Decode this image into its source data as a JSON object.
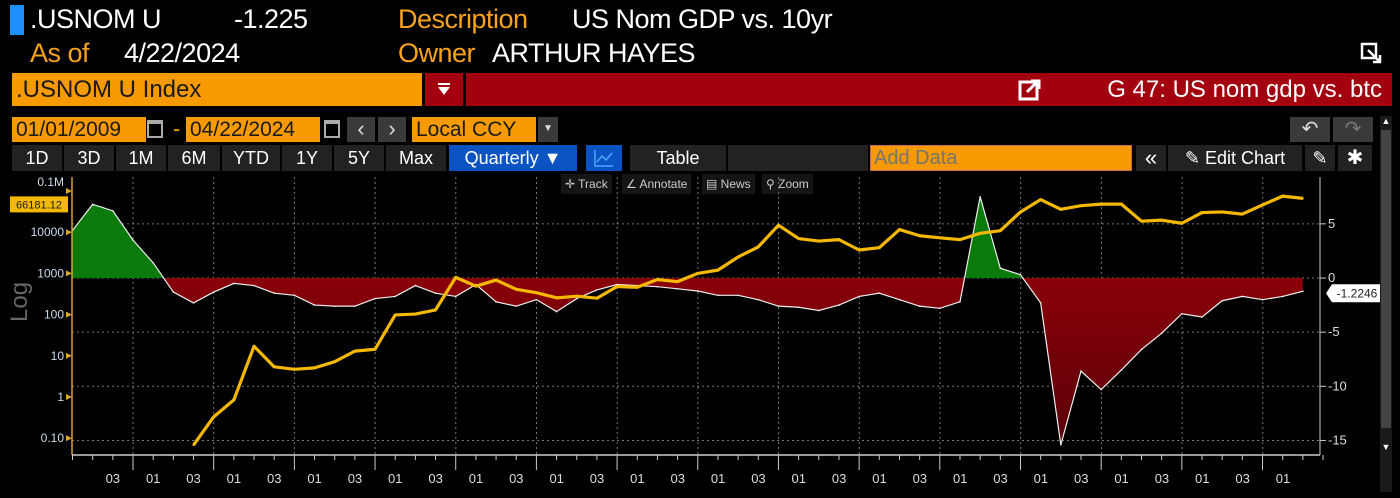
{
  "header": {
    "ticker": ".USNOM U",
    "last_value": "-1.225",
    "description_label": "Description",
    "description_value": "US Nom GDP vs. 10yr",
    "asof_label": "As of",
    "asof_value": "4/22/2024",
    "owner_label": "Owner",
    "owner_value": "ARTHUR HAYES"
  },
  "security_bar": {
    "security_input": ".USNOM U Index",
    "chart_title": "G 47: US nom gdp vs. btc"
  },
  "date_bar": {
    "start_date": "01/01/2009",
    "separator": "-",
    "end_date": "04/22/2024",
    "prev": "‹",
    "next": "›",
    "currency": "Local CCY",
    "undo": "↶",
    "redo": "↷"
  },
  "toolbar": {
    "periods": [
      "1D",
      "3D",
      "1M",
      "6M",
      "YTD",
      "1Y",
      "5Y",
      "Max"
    ],
    "frequency": "Quarterly ▼",
    "table_label": "Table",
    "add_data_placeholder": "Add Data",
    "collapse": "«",
    "edit_chart": "Edit Chart",
    "edit_icon": "✎",
    "settings_icon": "✱"
  },
  "chart_tools": [
    "Track",
    "Annotate",
    "News",
    "Zoom"
  ],
  "colors": {
    "accent_orange": "#f79a00",
    "title_red": "#a3000f",
    "btc_line": "#f5b800",
    "positive_fill": "#0a7a0a",
    "negative_fill": "#a0000a",
    "active_blue": "#0a53c2"
  },
  "chart_data": {
    "type": "area",
    "left_axis_label": "Log",
    "left_axis_scale": "log",
    "left_ticks": [
      "0.10",
      "1",
      "10",
      "100",
      "1000",
      "10000",
      "0.1M"
    ],
    "right_ticks": [
      "5",
      "0",
      "-5",
      "-10",
      "-15"
    ],
    "right_ylim": [
      -17,
      8
    ],
    "x_tick_labels_pattern": [
      "01",
      "03"
    ],
    "x_range": [
      "2009Q1",
      "2024Q2"
    ],
    "grid": true,
    "x": [
      "2009Q1",
      "2009Q2",
      "2009Q3",
      "2009Q4",
      "2010Q1",
      "2010Q2",
      "2010Q3",
      "2010Q4",
      "2011Q1",
      "2011Q2",
      "2011Q3",
      "2011Q4",
      "2012Q1",
      "2012Q2",
      "2012Q3",
      "2012Q4",
      "2013Q1",
      "2013Q2",
      "2013Q3",
      "2013Q4",
      "2014Q1",
      "2014Q2",
      "2014Q3",
      "2014Q4",
      "2015Q1",
      "2015Q2",
      "2015Q3",
      "2015Q4",
      "2016Q1",
      "2016Q2",
      "2016Q3",
      "2016Q4",
      "2017Q1",
      "2017Q2",
      "2017Q3",
      "2017Q4",
      "2018Q1",
      "2018Q2",
      "2018Q3",
      "2018Q4",
      "2019Q1",
      "2019Q2",
      "2019Q3",
      "2019Q4",
      "2020Q1",
      "2020Q2",
      "2020Q3",
      "2020Q4",
      "2021Q1",
      "2021Q2",
      "2021Q3",
      "2021Q4",
      "2022Q1",
      "2022Q2",
      "2022Q3",
      "2022Q4",
      "2023Q1",
      "2023Q2",
      "2023Q3",
      "2023Q4",
      "2024Q1",
      "2024Q2"
    ],
    "series": [
      {
        "axis": "right",
        "style": "area-fill-green-above-red-below",
        "last_label": "-1.2246",
        "values": [
          4.4,
          6.8,
          6.2,
          3.5,
          1.4,
          -1.3,
          -2.3,
          -1.3,
          -0.5,
          -0.7,
          -1.4,
          -1.6,
          -2.5,
          -2.6,
          -2.6,
          -1.9,
          -1.7,
          -0.7,
          -1.4,
          -1.7,
          -0.6,
          -2.2,
          -2.6,
          -2.0,
          -3.1,
          -1.9,
          -1.1,
          -0.6,
          -0.7,
          -0.8,
          -1.0,
          -1.2,
          -1.6,
          -1.6,
          -2.0,
          -2.6,
          -2.7,
          -3.0,
          -2.5,
          -1.7,
          -1.4,
          -2.0,
          -2.6,
          -2.8,
          -2.2,
          7.5,
          0.9,
          0.3,
          -2.3,
          -15.4,
          -8.6,
          -10.3,
          -8.5,
          -6.6,
          -5.1,
          -3.3,
          -3.6,
          -2.1,
          -1.7,
          -2.0,
          -1.7,
          -1.2246
        ]
      },
      {
        "axis": "left",
        "style": "line",
        "last_label": "66181.12",
        "values": [
          null,
          null,
          null,
          null,
          null,
          null,
          0.068,
          0.33,
          0.85,
          17,
          5.4,
          4.7,
          5.1,
          7.2,
          13,
          14.4,
          98,
          103,
          130,
          800,
          490,
          690,
          410,
          340,
          255,
          280,
          250,
          480,
          460,
          710,
          630,
          1000,
          1200,
          2500,
          4400,
          14800,
          7000,
          6100,
          6600,
          3700,
          4200,
          11600,
          8200,
          7300,
          6600,
          9400,
          10900,
          31000,
          62000,
          36000,
          44000,
          48000,
          48000,
          18500,
          19600,
          16500,
          30000,
          31000,
          27500,
          46000,
          75000,
          66181.12
        ]
      }
    ]
  }
}
